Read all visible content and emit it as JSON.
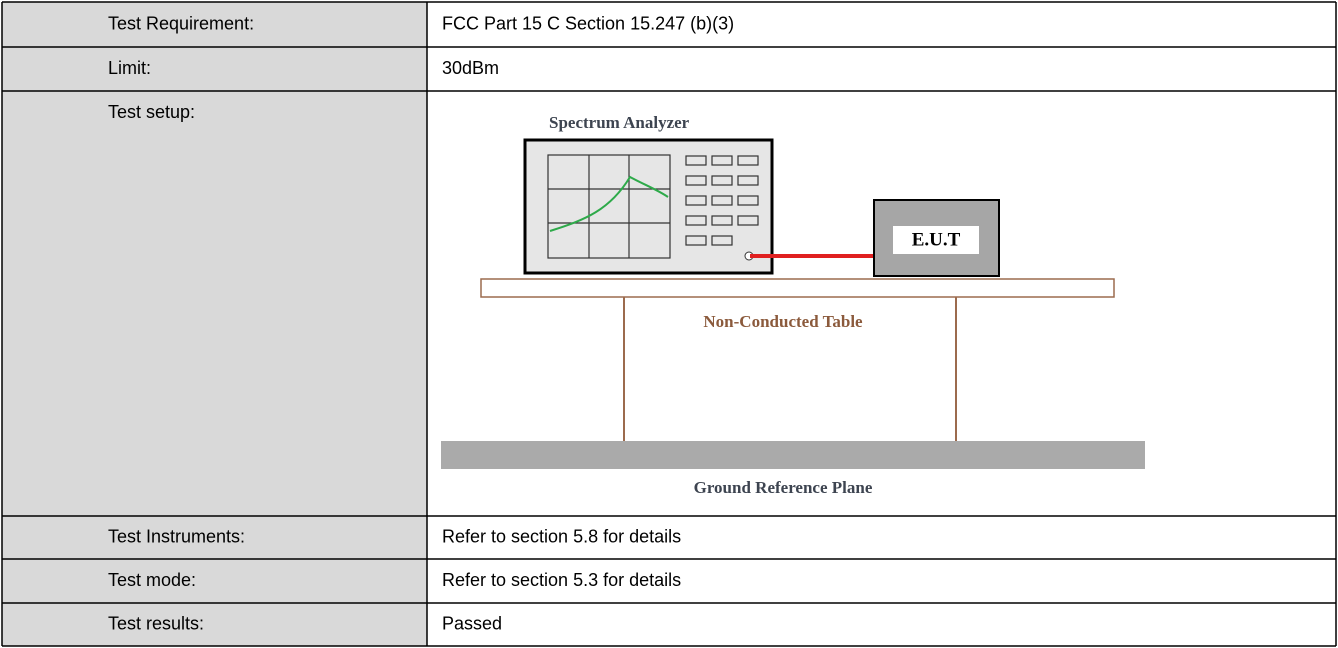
{
  "table": {
    "rows": [
      {
        "label": "Test Requirement:",
        "value": "FCC Part 15 C Section 15.247 (b)(3)"
      },
      {
        "label": "Limit:",
        "value": "30dBm"
      },
      {
        "label": "Test setup:"
      },
      {
        "label": "Test Instruments:",
        "value": "Refer to section 5.8 for details"
      },
      {
        "label": "Test mode:",
        "value": "Refer to section 5.3 for details"
      },
      {
        "label": "Test results:",
        "value": "Passed"
      }
    ]
  },
  "diagram": {
    "analyzer_label": "Spectrum Analyzer",
    "eut_label": "E.U.T",
    "table_label": "Non-Conducted Table",
    "ground_label": "Ground Reference Plane"
  }
}
